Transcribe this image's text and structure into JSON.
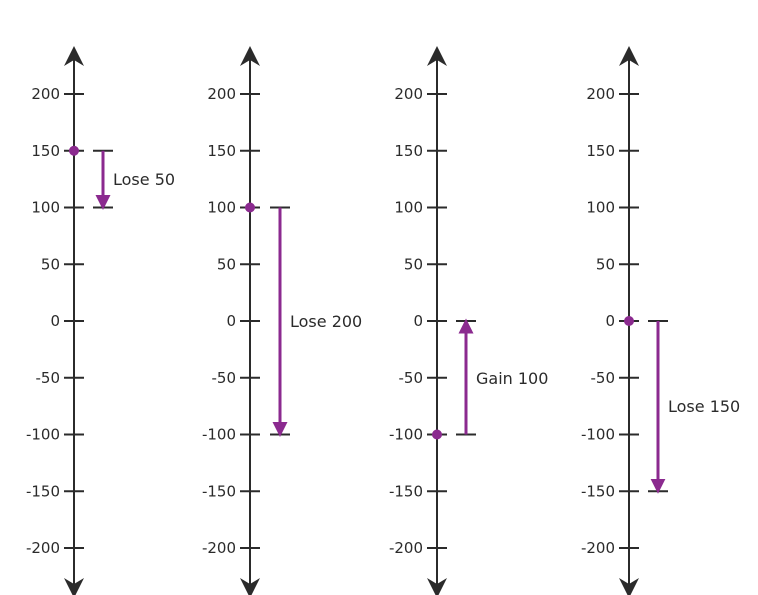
{
  "colors": {
    "axis": "#2b2b2b",
    "accent": "#8b2a8f"
  },
  "chart_data": {
    "type": "diagram",
    "tick_values": [
      200,
      150,
      100,
      50,
      0,
      -50,
      -100,
      -150,
      -200
    ],
    "tick_labels": [
      "200",
      "150",
      "100",
      "50",
      "0",
      "-50",
      "-100",
      "-150",
      "-200"
    ],
    "number_lines": [
      {
        "start": 150,
        "end": 100,
        "label": "Lose 50"
      },
      {
        "start": 100,
        "end": -100,
        "label": "Lose 200"
      },
      {
        "start": -100,
        "end": 0,
        "label": "Gain 100"
      },
      {
        "start": 0,
        "end": -150,
        "label": "Lose 150"
      }
    ]
  }
}
